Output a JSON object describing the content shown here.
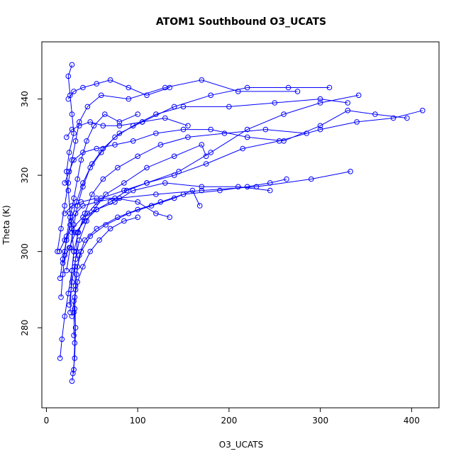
{
  "chart_data": {
    "type": "scatter",
    "title": "ATOM1 Southbound O3_UCATS",
    "xlabel": "O3_UCATS",
    "ylabel": "Theta (K)",
    "xlim": [
      -5,
      430
    ],
    "ylim": [
      259,
      355
    ],
    "xticks": [
      0,
      100,
      200,
      300,
      400
    ],
    "yticks": [
      280,
      300,
      320,
      340
    ],
    "grid": false,
    "legend": "none",
    "color": "#0000ff",
    "markers": "open circles connected by lines",
    "series": [
      {
        "profiles": [
          [
            [
              28,
              266
            ],
            [
              30,
              269
            ],
            [
              31,
              276
            ],
            [
              30,
              284
            ],
            [
              32,
              290
            ],
            [
              31,
              296
            ],
            [
              33,
              300
            ],
            [
              34,
              305
            ],
            [
              45,
              310
            ],
            [
              60,
              314
            ],
            [
              85,
              316
            ],
            [
              110,
              318
            ],
            [
              140,
              320
            ],
            [
              175,
              323
            ],
            [
              215,
              327
            ],
            [
              255,
              329
            ],
            [
              300,
              332
            ],
            [
              340,
              334
            ],
            [
              380,
              335
            ],
            [
              412,
              337
            ]
          ],
          [
            [
              29,
              268
            ],
            [
              31,
              272
            ],
            [
              32,
              280
            ],
            [
              31,
              288
            ],
            [
              33,
              294
            ],
            [
              36,
              299
            ],
            [
              42,
              303
            ],
            [
              55,
              306
            ],
            [
              78,
              309
            ],
            [
              100,
              311
            ],
            [
              125,
              313
            ],
            [
              150,
              315
            ],
            [
              190,
              316
            ],
            [
              220,
              317
            ],
            [
              245,
              318
            ],
            [
              263,
              319
            ]
          ],
          [
            [
              30,
              278
            ],
            [
              31,
              285
            ],
            [
              32,
              291
            ],
            [
              34,
              296
            ],
            [
              38,
              300
            ],
            [
              48,
              304
            ],
            [
              65,
              307
            ],
            [
              90,
              310
            ],
            [
              115,
              312
            ],
            [
              140,
              314
            ],
            [
              160,
              316
            ],
            [
              168,
              312
            ]
          ],
          [
            [
              26,
              284
            ],
            [
              27,
              290
            ],
            [
              28,
              295
            ],
            [
              30,
              300
            ],
            [
              35,
              305
            ],
            [
              42,
              310
            ],
            [
              50,
              315
            ],
            [
              62,
              319
            ],
            [
              78,
              322
            ],
            [
              100,
              325
            ],
            [
              125,
              328
            ],
            [
              155,
              330
            ],
            [
              195,
              331
            ],
            [
              240,
              332
            ],
            [
              285,
              331
            ]
          ],
          [
            [
              15,
              272
            ],
            [
              17,
              277
            ],
            [
              20,
              283
            ],
            [
              24,
              289
            ],
            [
              28,
              295
            ],
            [
              30,
              300
            ],
            [
              28,
              305
            ],
            [
              26,
              310
            ],
            [
              24,
              316
            ],
            [
              22,
              321
            ],
            [
              25,
              326
            ],
            [
              30,
              331
            ],
            [
              28,
              336
            ],
            [
              26,
              341
            ],
            [
              24,
              346
            ],
            [
              28,
              349
            ]
          ],
          [
            [
              15,
              293
            ],
            [
              18,
              298
            ],
            [
              22,
              303
            ],
            [
              27,
              308
            ],
            [
              33,
              313
            ],
            [
              40,
              318
            ],
            [
              50,
              323
            ],
            [
              62,
              327
            ],
            [
              80,
              331
            ],
            [
              105,
              334
            ],
            [
              140,
              338
            ],
            [
              180,
              341
            ],
            [
              220,
              343
            ],
            [
              265,
              343
            ],
            [
              310,
              343
            ]
          ],
          [
            [
              12,
              300
            ],
            [
              16,
              306
            ],
            [
              20,
              312
            ],
            [
              24,
              318
            ],
            [
              28,
              324
            ],
            [
              32,
              329
            ],
            [
              36,
              334
            ],
            [
              45,
              338
            ],
            [
              60,
              341
            ],
            [
              90,
              340
            ],
            [
              130,
              343
            ],
            [
              170,
              345
            ],
            [
              210,
              342
            ],
            [
              275,
              342
            ]
          ],
          [
            [
              14,
              300
            ],
            [
              20,
              303
            ],
            [
              28,
              306
            ],
            [
              40,
              309
            ],
            [
              55,
              311
            ],
            [
              75,
              313
            ],
            [
              95,
              316
            ],
            [
              130,
              318
            ],
            [
              170,
              317
            ],
            [
              210,
              317
            ],
            [
              245,
              316
            ]
          ],
          [
            [
              18,
              297
            ],
            [
              25,
              301
            ],
            [
              32,
              305
            ],
            [
              42,
              308
            ],
            [
              55,
              311
            ],
            [
              70,
              313
            ],
            [
              88,
              316
            ],
            [
              110,
              318
            ],
            [
              145,
              321
            ],
            [
              180,
              326
            ],
            [
              220,
              332
            ],
            [
              260,
              336
            ],
            [
              300,
              339
            ],
            [
              342,
              341
            ]
          ],
          [
            [
              22,
              295
            ],
            [
              26,
              301
            ],
            [
              30,
              307
            ],
            [
              34,
              312
            ],
            [
              40,
              317
            ],
            [
              48,
              322
            ],
            [
              60,
              326
            ],
            [
              75,
              330
            ],
            [
              95,
              333
            ],
            [
              120,
              336
            ],
            [
              150,
              338
            ],
            [
              200,
              338
            ],
            [
              250,
              339
            ],
            [
              300,
              340
            ],
            [
              330,
              339
            ]
          ],
          [
            [
              20,
              310
            ],
            [
              28,
              312
            ],
            [
              38,
              313
            ],
            [
              55,
              314
            ],
            [
              80,
              314
            ],
            [
              120,
              315
            ],
            [
              170,
              316
            ],
            [
              230,
              317
            ],
            [
              290,
              319
            ],
            [
              333,
              321
            ]
          ],
          [
            [
              25,
              286
            ],
            [
              28,
              292
            ],
            [
              32,
              298
            ],
            [
              36,
              303
            ],
            [
              44,
              308
            ],
            [
              52,
              311
            ],
            [
              65,
              315
            ],
            [
              85,
              318
            ],
            [
              110,
              322
            ],
            [
              140,
              325
            ],
            [
              170,
              328
            ],
            [
              175,
              325
            ]
          ],
          [
            [
              16,
              288
            ],
            [
              18,
              294
            ],
            [
              20,
              299
            ],
            [
              22,
              304
            ],
            [
              26,
              309
            ],
            [
              30,
              314
            ],
            [
              34,
              319
            ],
            [
              38,
              324
            ],
            [
              44,
              329
            ],
            [
              52,
              333
            ],
            [
              64,
              336
            ],
            [
              80,
              334
            ],
            [
              100,
              336
            ]
          ],
          [
            [
              20,
              318
            ],
            [
              25,
              321
            ],
            [
              30,
              324
            ],
            [
              40,
              326
            ],
            [
              55,
              327
            ],
            [
              75,
              328
            ],
            [
              95,
              329
            ],
            [
              120,
              331
            ],
            [
              150,
              332
            ],
            [
              180,
              332
            ],
            [
              220,
              330
            ],
            [
              260,
              329
            ],
            [
              300,
              333
            ],
            [
              330,
              337
            ],
            [
              360,
              336
            ],
            [
              395,
              335
            ]
          ],
          [
            [
              24,
              340
            ],
            [
              30,
              342
            ],
            [
              40,
              343
            ],
            [
              55,
              344
            ],
            [
              70,
              345
            ],
            [
              90,
              343
            ],
            [
              110,
              341
            ],
            [
              135,
              343
            ]
          ],
          [
            [
              22,
              330
            ],
            [
              28,
              332
            ],
            [
              36,
              333
            ],
            [
              48,
              334
            ],
            [
              62,
              333
            ],
            [
              80,
              333
            ],
            [
              105,
              334
            ],
            [
              130,
              335
            ],
            [
              155,
              333
            ]
          ],
          [
            [
              20,
              300
            ],
            [
              22,
              303
            ],
            [
              26,
              307
            ],
            [
              32,
              310
            ],
            [
              40,
              312
            ],
            [
              55,
              313
            ],
            [
              75,
              314
            ],
            [
              100,
              313
            ],
            [
              120,
              310
            ],
            [
              135,
              309
            ]
          ],
          [
            [
              28,
              283
            ],
            [
              30,
              287
            ],
            [
              34,
              292
            ],
            [
              40,
              296
            ],
            [
              48,
              300
            ],
            [
              58,
              303
            ],
            [
              70,
              306
            ],
            [
              85,
              308
            ],
            [
              100,
              309
            ]
          ]
        ]
      }
    ]
  }
}
